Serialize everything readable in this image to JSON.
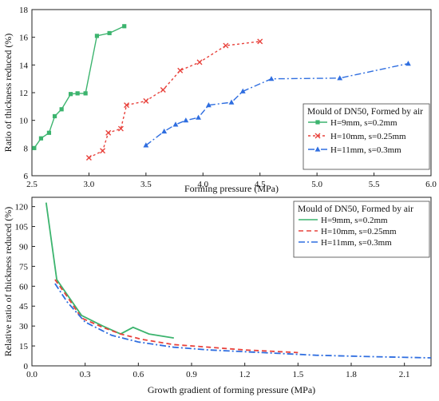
{
  "chart_data": [
    {
      "type": "line",
      "title": "",
      "xlabel": "Forming pressure (MPa)",
      "ylabel": "Ratio of thickness reduced (%)",
      "xlim": [
        2.5,
        6.0
      ],
      "ylim": [
        6,
        18
      ],
      "xticks": [
        "2.5",
        "3.0",
        "3.5",
        "4.0",
        "4.5",
        "5.0",
        "5.5",
        "6.0"
      ],
      "yticks": [
        "6",
        "8",
        "10",
        "12",
        "14",
        "16",
        "18"
      ],
      "grid": false,
      "legend_title": "Mould of DN50, Formed by air",
      "legend_position": "center-right",
      "series": [
        {
          "name": "H=9mm, s=0.2mm",
          "color": "#3cb46e",
          "marker": "square",
          "dash": "solid",
          "x": [
            2.52,
            2.58,
            2.65,
            2.7,
            2.76,
            2.84,
            2.9,
            2.97,
            3.07,
            3.18,
            3.31
          ],
          "y": [
            8.0,
            8.7,
            9.1,
            10.3,
            10.8,
            11.9,
            11.95,
            11.95,
            16.1,
            16.3,
            16.8
          ]
        },
        {
          "name": "H=10mm, s=0.25mm",
          "color": "#e8423c",
          "marker": "x",
          "dash": "dotted",
          "x": [
            3.0,
            3.12,
            3.17,
            3.28,
            3.33,
            3.5,
            3.65,
            3.8,
            3.97,
            4.2,
            4.5
          ],
          "y": [
            7.3,
            7.8,
            9.1,
            9.4,
            11.1,
            11.4,
            12.2,
            13.6,
            14.2,
            15.4,
            15.7
          ]
        },
        {
          "name": "H=11mm, s=0.3mm",
          "color": "#2f6ee0",
          "marker": "triangle",
          "dash": "dashdot",
          "x": [
            3.5,
            3.66,
            3.76,
            3.85,
            3.96,
            4.05,
            4.25,
            4.35,
            4.6,
            5.2,
            5.8
          ],
          "y": [
            8.2,
            9.2,
            9.7,
            10.0,
            10.2,
            11.1,
            11.3,
            12.1,
            13.0,
            13.05,
            14.1
          ]
        }
      ]
    },
    {
      "type": "line",
      "title": "",
      "xlabel": "Growth gradient of forming pressure (MPa)",
      "ylabel": "Relative ratio of thickness reduced (%)",
      "xlim": [
        0,
        2.25
      ],
      "ylim": [
        0,
        127
      ],
      "xticks": [
        "0.0",
        "0.3",
        "0.6",
        "0.9",
        "1.2",
        "1.5",
        "1.8",
        "2.1"
      ],
      "yticks": [
        "0",
        "15",
        "30",
        "45",
        "60",
        "75",
        "90",
        "105",
        "120"
      ],
      "grid": false,
      "legend_title": "Mould of DN50, Formed by air",
      "legend_position": "top-right",
      "series": [
        {
          "name": "H=9mm, s=0.2mm",
          "color": "#3cb46e",
          "dash": "solid",
          "x": [
            0.08,
            0.14,
            0.28,
            0.4,
            0.5,
            0.57,
            0.66,
            0.8
          ],
          "y": [
            123,
            65,
            38,
            30,
            24,
            29,
            24,
            21
          ]
        },
        {
          "name": "H=10mm, s=0.25mm",
          "color": "#e8423c",
          "dash": "dashed",
          "x": [
            0.13,
            0.2,
            0.28,
            0.4,
            0.5,
            0.62,
            0.8,
            1.0,
            1.2,
            1.5
          ],
          "y": [
            65,
            52,
            36,
            29,
            24,
            20,
            16,
            14,
            12,
            10
          ]
        },
        {
          "name": "H=11mm, s=0.3mm",
          "color": "#2f6ee0",
          "dash": "dashdot",
          "x": [
            0.13,
            0.2,
            0.3,
            0.45,
            0.6,
            0.8,
            1.0,
            1.3,
            1.6,
            1.9,
            2.25
          ],
          "y": [
            62,
            48,
            33,
            23,
            18,
            14,
            12,
            10,
            8,
            7,
            6
          ]
        }
      ]
    }
  ]
}
